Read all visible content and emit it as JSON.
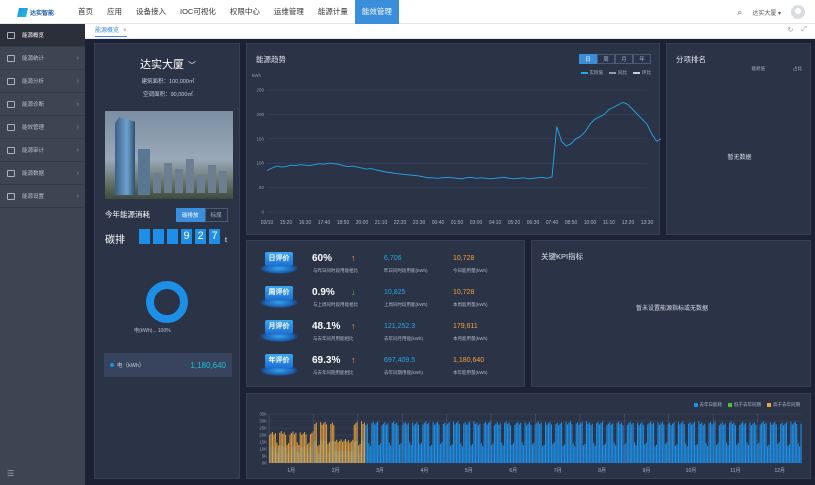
{
  "app": {
    "logo_text": "达实智能"
  },
  "nav": {
    "items": [
      "首页",
      "应用",
      "设备接入",
      "IOC可视化",
      "权限中心",
      "运维管理",
      "能源计量",
      "能效管理"
    ],
    "active_index": 7
  },
  "header": {
    "user": "达实大厦 ▾"
  },
  "sidebar": {
    "items": [
      {
        "label": "能源概览",
        "active": true,
        "has_arrow": false
      },
      {
        "label": "能源统计",
        "has_arrow": true
      },
      {
        "label": "能源分析",
        "has_arrow": true
      },
      {
        "label": "能源诊断",
        "has_arrow": true
      },
      {
        "label": "能效管理",
        "has_arrow": true
      },
      {
        "label": "能源审计",
        "has_arrow": true
      },
      {
        "label": "能源数据",
        "has_arrow": true
      },
      {
        "label": "能源设置",
        "has_arrow": true
      }
    ]
  },
  "tabs": [
    {
      "label": "能源概览"
    }
  ],
  "building": {
    "name": "达实大厦",
    "area_label": "建筑面积：100,000㎡",
    "ac_area_label": "空调面积：90,000㎡"
  },
  "energy": {
    "title": "今年能源消耗",
    "tabs": [
      "碳排放",
      "标煤"
    ],
    "active_tab": 0,
    "carbon_label": "碳排",
    "digits": [
      "",
      "",
      "",
      "9",
      "2",
      "7"
    ],
    "unit": "t",
    "donut_label": "电(kWh)... 100%",
    "legend_name": "电（kWh）",
    "legend_value": "1,180,640",
    "donut_percent": 100,
    "donut_color": "#1e8fe6"
  },
  "trend": {
    "title": "能源趋势",
    "unit": "kWh",
    "tabs": [
      "日",
      "周",
      "月",
      "年"
    ],
    "active_tab": 0,
    "legend": [
      {
        "name": "实际值",
        "color": "#2aa5e8"
      },
      {
        "name": "同比",
        "color": "#8e9bb0"
      },
      {
        "name": "环比",
        "color": "#c5ced9"
      }
    ]
  },
  "rank": {
    "title": "分项排名",
    "columns": [
      "能耗值",
      "占比"
    ],
    "empty_text": "暂无数据"
  },
  "evals": [
    {
      "badge": "日评价",
      "pct": "60%",
      "direction": "up",
      "desc": "与昨日同时段用能相比",
      "v1": "6,706",
      "l1": "昨日同时段用能(kWh)",
      "v2": "10,728",
      "l2": "今日能用量(kWh)"
    },
    {
      "badge": "周评价",
      "pct": "0.9%",
      "direction": "down",
      "desc": "与上周同时段用能相比",
      "v1": "10,825",
      "l1": "上周同时段用能(kWh)",
      "v2": "10,728",
      "l2": "本周能用量(kWh)"
    },
    {
      "badge": "月评价",
      "pct": "48.1%",
      "direction": "up",
      "desc": "与去年同月用能相比",
      "v1": "121,252.3",
      "l1": "去年同月用能(kWh)",
      "v2": "179,611",
      "l2": "本月能用量(kWh)"
    },
    {
      "badge": "年评价",
      "pct": "69.3%",
      "direction": "up",
      "desc": "与去年同期用能相比",
      "v1": "697,409.5",
      "l1": "去年同期用能(kWh)",
      "v2": "1,180,640",
      "l2": "本年能用量(kWh)"
    }
  ],
  "kpi": {
    "title": "关键KPI指标",
    "empty_text": "暂未设置能源指标或无数据"
  },
  "chart_data": [
    {
      "type": "line",
      "title": "能源趋势",
      "ylabel": "kWh",
      "ylim": [
        0,
        250
      ],
      "yticks": [
        0,
        50,
        100,
        150,
        200,
        250
      ],
      "xticks": [
        "03/10",
        "15:20",
        "16:30",
        "17:40",
        "18:50",
        "20:00",
        "21:10",
        "22:20",
        "23:30",
        "00:40",
        "01:50",
        "03:00",
        "04:10",
        "05:20",
        "06:30",
        "07:40",
        "08:50",
        "10:00",
        "11:10",
        "12:20",
        "13:30"
      ],
      "grid": true,
      "legend_position": "top-right",
      "series": [
        {
          "name": "实际值",
          "points_per_tick": 4,
          "values": [
            85,
            90,
            94,
            92,
            93,
            96,
            95,
            97,
            96,
            95,
            97,
            99,
            98,
            100,
            99,
            98,
            95,
            93,
            94,
            92,
            90,
            88,
            89,
            86,
            84,
            82,
            81,
            79,
            78,
            77,
            76,
            75,
            74,
            72,
            70,
            70,
            69,
            70,
            71,
            70,
            69,
            68,
            70,
            71,
            69,
            70,
            69,
            68,
            69,
            70,
            71,
            69,
            68,
            69,
            70,
            68,
            69,
            70,
            71,
            69,
            72,
            175,
            145,
            135,
            140,
            150,
            155,
            165,
            180,
            190,
            195,
            200,
            210,
            215,
            220,
            225,
            220,
            210,
            200,
            190,
            180,
            160,
            145,
            150,
            165
          ]
        }
      ]
    },
    {
      "type": "bar",
      "title": "",
      "ylim": [
        0,
        35000
      ],
      "yticks": [
        "0K",
        "5K",
        "10K",
        "15K",
        "20K",
        "25K",
        "30K",
        "35K"
      ],
      "xticks": [
        "1月",
        "2月",
        "3月",
        "4月",
        "5月",
        "6月",
        "7月",
        "8月",
        "9月",
        "10月",
        "11月",
        "12月"
      ],
      "legend_position": "top-right",
      "series": [
        {
          "name": "去年日能耗",
          "color": "#1e8fe6"
        },
        {
          "name": "低于去年同期",
          "color": "#4dbf3c"
        },
        {
          "name": "高于去年同期",
          "color": "#e9a43c"
        }
      ],
      "higher_than_last_year_days": 66,
      "approximate_profile": {
        "weekday_value": 27000,
        "weekend_value": 12000,
        "january_weekday_value": 20000
      }
    }
  ]
}
